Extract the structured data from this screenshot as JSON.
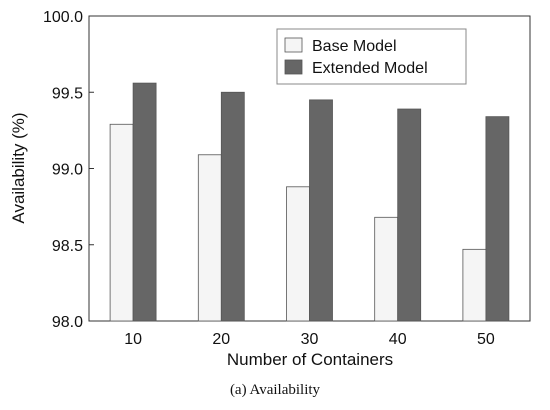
{
  "caption": "(a) Availability",
  "colors": {
    "base": "#f5f5f5",
    "extended": "#666666",
    "bar_stroke": "#555555",
    "axis": "#333333"
  },
  "chart_data": {
    "type": "bar",
    "categories": [
      "10",
      "20",
      "30",
      "40",
      "50"
    ],
    "series": [
      {
        "name": "Base Model",
        "values": [
          99.29,
          99.09,
          98.88,
          98.68,
          98.47
        ]
      },
      {
        "name": "Extended Model",
        "values": [
          99.56,
          99.5,
          99.45,
          99.39,
          99.34
        ]
      }
    ],
    "title": "",
    "xlabel": "Number of Containers",
    "ylabel": "Availability (%)",
    "ylim": [
      98.0,
      100.0
    ],
    "yticks": [
      "98.0",
      "98.5",
      "99.0",
      "99.5",
      "100.0"
    ],
    "grid": false,
    "legend": "top-right"
  }
}
